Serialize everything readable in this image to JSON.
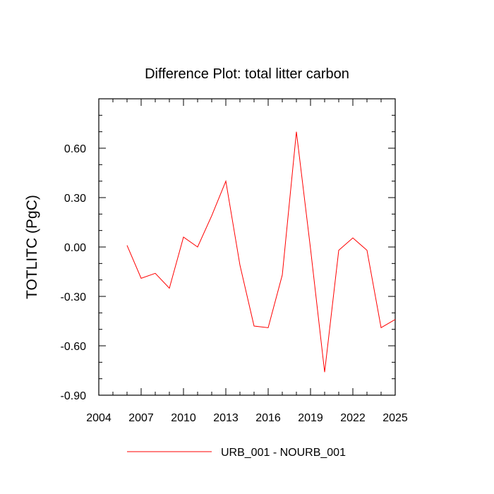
{
  "chart_data": {
    "type": "line",
    "title": "Difference Plot: total litter carbon",
    "xlabel": "",
    "ylabel": "TOTLITC  (PgC)",
    "xlim": [
      2004,
      2025
    ],
    "ylim": [
      -0.9,
      0.9
    ],
    "x_ticks": [
      "2004",
      "2007",
      "2010",
      "2013",
      "2016",
      "2019",
      "2022",
      "2025"
    ],
    "y_ticks": [
      "-0.90",
      "-0.60",
      "-0.30",
      "0.00",
      "0.30",
      "0.60"
    ],
    "grid": false,
    "legend_position": "bottom",
    "series": [
      {
        "name": "URB_001 - NOURB_001",
        "color": "#ff0000",
        "x": [
          2006,
          2007,
          2008,
          2009,
          2010,
          2011,
          2012,
          2013,
          2014,
          2015,
          2016,
          2017,
          2018,
          2019,
          2020,
          2021,
          2022,
          2023,
          2024,
          2025
        ],
        "y": [
          0.01,
          -0.19,
          -0.16,
          -0.25,
          0.06,
          0.0,
          0.19,
          0.4,
          -0.11,
          -0.48,
          -0.49,
          -0.17,
          0.7,
          -0.01,
          -0.76,
          -0.02,
          0.055,
          -0.02,
          -0.49,
          -0.44
        ]
      }
    ]
  }
}
